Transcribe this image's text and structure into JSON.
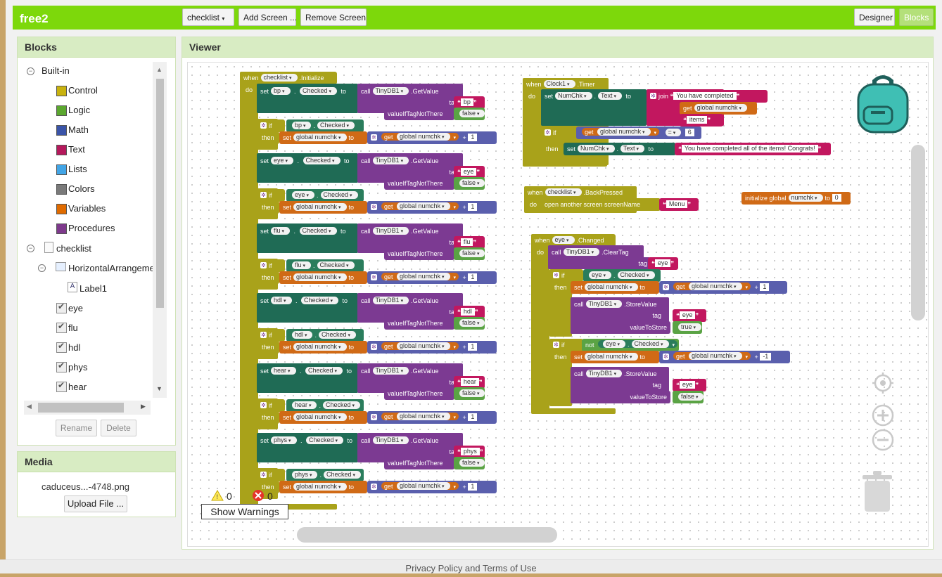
{
  "app": {
    "project_name": "free2"
  },
  "toolbar": {
    "screen_select": "checklist",
    "add_screen": "Add Screen ...",
    "remove_screen": "Remove Screen",
    "designer": "Designer",
    "blocks": "Blocks"
  },
  "blocks_panel": {
    "title": "Blocks",
    "builtin_label": "Built-in",
    "builtin_items": [
      {
        "label": "Control",
        "color": "#c8b20e"
      },
      {
        "label": "Logic",
        "color": "#5ba72f"
      },
      {
        "label": "Math",
        "color": "#3a54a8"
      },
      {
        "label": "Text",
        "color": "#b5195c"
      },
      {
        "label": "Lists",
        "color": "#42a5e6"
      },
      {
        "label": "Colors",
        "color": "#7a7a7a"
      },
      {
        "label": "Variables",
        "color": "#e06b00"
      },
      {
        "label": "Procedures",
        "color": "#7e3a8c"
      }
    ],
    "screen_label": "checklist",
    "arrangement_label": "HorizontalArrangeme",
    "label1": "Label1",
    "components": [
      "eye",
      "flu",
      "hdl",
      "phys",
      "hear"
    ],
    "rename": "Rename",
    "delete": "Delete"
  },
  "media_panel": {
    "title": "Media",
    "file": "caduceus...-4748.png",
    "upload": "Upload File ..."
  },
  "viewer": {
    "title": "Viewer",
    "warnings_count": "0",
    "errors_count": "0",
    "show_warnings": "Show Warnings"
  },
  "workspace": {
    "init_event": {
      "when": "when",
      "component": "checklist",
      "event": ".Initialize",
      "do": "do"
    },
    "set_blocks": [
      {
        "comp": "bp",
        "tag": "bp"
      },
      {
        "comp": "eye",
        "tag": "eye"
      },
      {
        "comp": "flu",
        "tag": "flu"
      },
      {
        "comp": "hdl",
        "tag": "hdl"
      },
      {
        "comp": "hear",
        "tag": "hear"
      },
      {
        "comp": "phys",
        "tag": "phys"
      }
    ],
    "common": {
      "set": "set",
      "checked": "Checked",
      "to": "to",
      "call": "call",
      "tinydb": "TinyDB1",
      "getvalue": ".GetValue",
      "tag": "tag",
      "valueIfTagNotThere": "valueIfTagNotThere",
      "false": "false",
      "true": "true",
      "if": "if",
      "then": "then",
      "global_numchk": "global numchk",
      "get": "get",
      "plus": "+",
      "one": "1"
    },
    "clock": {
      "when": "when",
      "component": "Clock1",
      "event": ".Timer",
      "do": "do",
      "set": "set",
      "numchk": "NumChk",
      "text": "Text",
      "to": "to",
      "join": "join",
      "str1": "You have completed",
      "get": "get",
      "global_numchk": "global numchk",
      "str2": "items",
      "if": "if",
      "eq": "=",
      "six": "6",
      "then": "then",
      "complete": "You have completed all of the items! Congrats!"
    },
    "back": {
      "when": "when",
      "component": "checklist",
      "event": ".BackPressed",
      "do": "do",
      "open": "open another screen  screenName",
      "menu": "Menu"
    },
    "init_global": {
      "label": "initialize global",
      "name": "numchk",
      "to": "to",
      "value": "0"
    },
    "eye_changed": {
      "when": "when",
      "component": "eye",
      "event": ".Changed",
      "do": "do",
      "call": "call",
      "tinydb": "TinyDB1",
      "cleartag": ".ClearTag",
      "tag": "tag",
      "eye": "eye",
      "if": "if",
      "checked": "Checked",
      "then": "then",
      "set": "set",
      "global_numchk": "global numchk",
      "to": "to",
      "get": "get",
      "plus": "+",
      "one": "1",
      "storevalue": ".StoreValue",
      "valueToStore": "valueToStore",
      "true": "true",
      "not": "not",
      "minus_one": "-1",
      "false": "false"
    }
  },
  "footer": {
    "text": "Privacy Policy and Terms of Use"
  }
}
